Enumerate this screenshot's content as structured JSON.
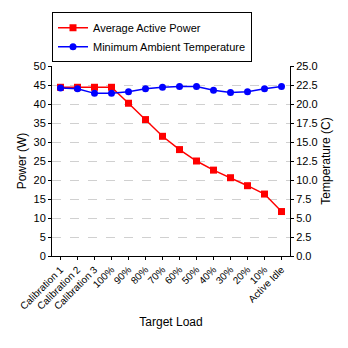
{
  "chart_data": {
    "type": "line",
    "x_label": "Target Load",
    "y_label": "Power (W)",
    "y2_label": "Temperature (C)",
    "categories": [
      "Calibration 1",
      "Calibration 2",
      "Calibration 3",
      "100%",
      "90%",
      "80%",
      "70%",
      "60%",
      "50%",
      "40%",
      "30%",
      "20%",
      "10%",
      "Active Idle"
    ],
    "series": [
      {
        "name": "Average Active Power",
        "color": "#ff0000",
        "marker": "square",
        "line_style": "solid",
        "values": [
          44.4,
          44.4,
          44.4,
          44.4,
          40.2,
          35.9,
          31.5,
          28.0,
          25.0,
          22.6,
          20.6,
          18.5,
          16.3,
          11.7
        ]
      },
      {
        "name": "Minimum Ambient Temperature",
        "color": "#0000ff",
        "marker": "circle",
        "line_style": "solid",
        "axis": "y2",
        "values": [
          22.1,
          22.0,
          21.4,
          21.4,
          21.6,
          22.0,
          22.2,
          22.3,
          22.3,
          21.8,
          21.5,
          21.6,
          22.0,
          22.3
        ]
      }
    ],
    "ylim": [
      0,
      50
    ],
    "yticks": [
      0,
      5,
      10,
      15,
      20,
      25,
      30,
      35,
      40,
      45,
      50
    ],
    "y2lim": [
      0,
      25
    ],
    "y2ticks": [
      {
        "value": 0,
        "label": "0.0"
      },
      {
        "value": 2.5,
        "label": "2.5"
      },
      {
        "value": 5,
        "label": "5.0"
      },
      {
        "value": 7.5,
        "label": "7.5"
      },
      {
        "value": 10,
        "label": "10.0"
      },
      {
        "value": 12.5,
        "label": "12.5"
      },
      {
        "value": 15,
        "label": "15.0"
      },
      {
        "value": 17.5,
        "label": "17.5"
      },
      {
        "value": 20,
        "label": "20.0"
      },
      {
        "value": 22.5,
        "label": "22.5"
      },
      {
        "value": 25,
        "label": "25.0"
      }
    ],
    "grid": true,
    "legend": "top"
  }
}
